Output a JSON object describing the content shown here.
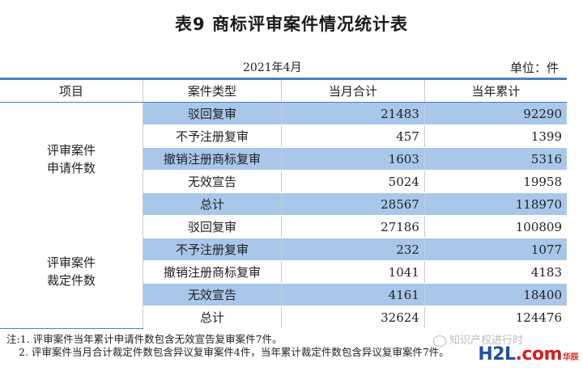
{
  "title": "表9  商标评审案件情况统计表",
  "date": "2021年4月",
  "unit": "单位：件",
  "headers": [
    "项目",
    "案件类型",
    "当月合计",
    "当年累计"
  ],
  "groups": [
    {
      "label": "评审案件\n申请件数",
      "rows": [
        {
          "type": "驳回复审",
          "month": "21483",
          "year": "92290"
        },
        {
          "type": "不予注册复审",
          "month": "457",
          "year": "1399"
        },
        {
          "type": "撤销注册商标复审",
          "month": "1603",
          "year": "5316"
        },
        {
          "type": "无效宣告",
          "month": "5024",
          "year": "19958"
        },
        {
          "type": "总计",
          "month": "28567",
          "year": "118970"
        }
      ]
    },
    {
      "label": "评审案件\n裁定件数",
      "rows": [
        {
          "type": "驳回复审",
          "month": "27186",
          "year": "100809"
        },
        {
          "type": "不予注册复审",
          "month": "232",
          "year": "1077"
        },
        {
          "type": "撤销注册商标复审",
          "month": "1041",
          "year": "4183"
        },
        {
          "type": "无效宣告",
          "month": "4161",
          "year": "18400"
        },
        {
          "type": "总计",
          "month": "32624",
          "year": "124476"
        }
      ]
    }
  ],
  "notes": [
    "注:1. 评审案件当年累计申请件数包含无效宣告复审案件7件。",
    "2. 评审案件当月合计裁定件数包含异议复审案件4件，当年累计裁定件数包含异议复审案件7件。"
  ],
  "watermark": "知识产权进行时",
  "logo": {
    "part1": "H2L",
    "part2": ".com",
    "sub": "华辰"
  },
  "colors": {
    "accent": "#4a7fc1",
    "shade": "#a8c7ea"
  }
}
